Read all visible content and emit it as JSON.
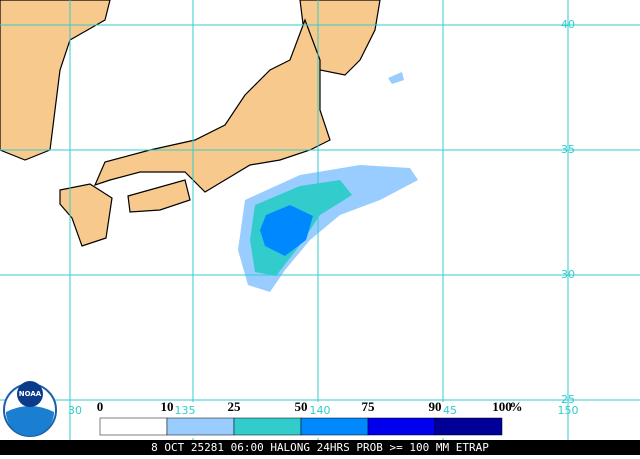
{
  "map": {
    "lat_labels": [
      "40",
      "35",
      "30",
      "25"
    ],
    "lon_labels": [
      "30",
      "135",
      "140",
      "45",
      "150"
    ],
    "legend": {
      "labels": [
        "0",
        "10",
        "25",
        "50",
        "75",
        "90",
        "100"
      ],
      "unit": "%",
      "colors": [
        "#ffffff",
        "#99ccff",
        "#33cccc",
        "#0088ff",
        "#0000ee",
        "#000099"
      ]
    },
    "logo": "NOAA",
    "caption": "8 OCT 25281 06:00 HALONG 24HRS PROB >= 100 MM ETRAP"
  }
}
